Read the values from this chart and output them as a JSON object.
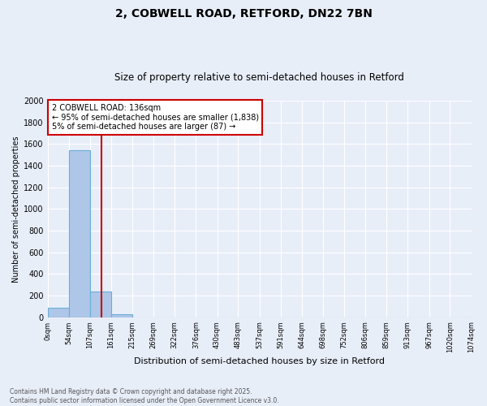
{
  "title1": "2, COBWELL ROAD, RETFORD, DN22 7BN",
  "title2": "Size of property relative to semi-detached houses in Retford",
  "xlabel": "Distribution of semi-detached houses by size in Retford",
  "ylabel": "Number of semi-detached properties",
  "bin_edges": [
    0,
    54,
    107,
    161,
    215,
    269,
    322,
    376,
    430,
    483,
    537,
    591,
    644,
    698,
    752,
    806,
    859,
    913,
    967,
    1020,
    1074
  ],
  "bar_heights": [
    90,
    1540,
    240,
    30,
    0,
    0,
    0,
    0,
    0,
    0,
    0,
    0,
    0,
    0,
    0,
    0,
    0,
    0,
    0,
    0
  ],
  "bar_color": "#aec6e8",
  "bar_edgecolor": "#6baed6",
  "vline_x": 136,
  "vline_color": "#cc0000",
  "ylim": [
    0,
    2000
  ],
  "yticks": [
    0,
    200,
    400,
    600,
    800,
    1000,
    1200,
    1400,
    1600,
    1800,
    2000
  ],
  "annotation_text": "2 COBWELL ROAD: 136sqm\n← 95% of semi-detached houses are smaller (1,838)\n5% of semi-detached houses are larger (87) →",
  "annotation_box_color": "#cc0000",
  "annotation_text_color": "#000000",
  "annotation_bg": "#ffffff",
  "footnote": "Contains HM Land Registry data © Crown copyright and database right 2025.\nContains public sector information licensed under the Open Government Licence v3.0.",
  "background_color": "#e8eef8",
  "plot_bg": "#e8eef8",
  "grid_color": "#ffffff"
}
